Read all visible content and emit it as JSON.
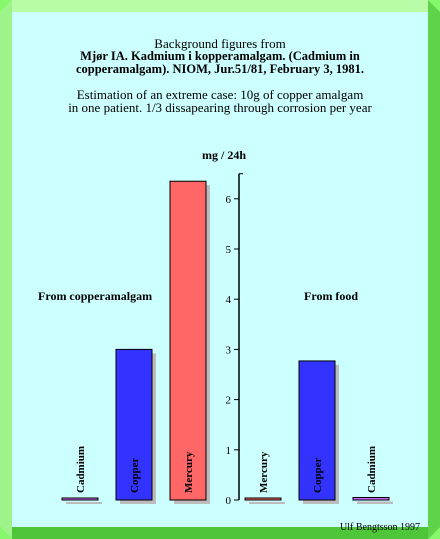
{
  "colors": {
    "background": "#ccffff",
    "frame": "#86f86c",
    "axis": "#000000",
    "shadow": "#bcbcbc"
  },
  "header": {
    "line1": "Background figures from",
    "line2": "Mjør IA. Kadmium i kopperamalgam. (Cadmium in",
    "line3": "copperamalgam). NIOM, Jur.51/81, February 3, 1981.",
    "line4": "Estimation of an extreme case: 10g of copper amalgam",
    "line5": "in one patient. 1/3 dissapearing through corrosion per year"
  },
  "group_labels": {
    "left": "From copperamalgam",
    "right": "From food"
  },
  "footer": {
    "credit": "Ulf Bengtsson 1997"
  },
  "chart_data": {
    "type": "bar",
    "title": "",
    "xlabel": "",
    "ylabel": "mg / 24h",
    "ylim": [
      0,
      6.5
    ],
    "yticks": [
      "0",
      "1",
      "2",
      "3",
      "4",
      "5",
      "6"
    ],
    "grid": false,
    "categories": [
      "Cadmium",
      "Copper",
      "Mercury",
      "Mercury",
      "Copper",
      "Cadmium"
    ],
    "groups": [
      "From copperamalgam",
      "From copperamalgam",
      "From copperamalgam",
      "From food",
      "From food",
      "From food"
    ],
    "values": [
      0.04,
      3.0,
      6.35,
      0.04,
      2.77,
      0.05
    ],
    "bar_colors": [
      "#cc66ff",
      "#3333ff",
      "#ff6666",
      "#ff6666",
      "#3333ff",
      "#cc66ff"
    ]
  }
}
